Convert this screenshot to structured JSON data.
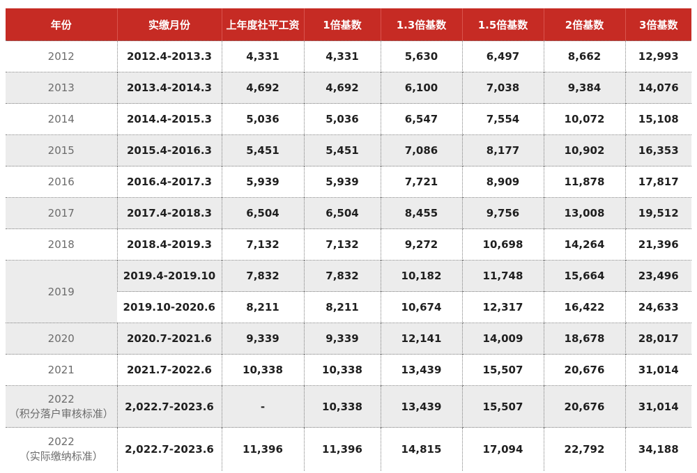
{
  "headers": [
    "年份",
    "实缴月份",
    "上年度社平工资",
    "1倍基数",
    "1.3倍基数",
    "1.5倍基数",
    "2倍基数",
    "3倍基数"
  ],
  "rows": [
    {
      "year": "2012",
      "period": "2012.4-2013.3",
      "avg": "4,331",
      "x1": "4,331",
      "x13": "5,630",
      "x15": "6,497",
      "x2": "8,662",
      "x3": "12,993"
    },
    {
      "year": "2013",
      "period": "2013.4-2014.3",
      "avg": "4,692",
      "x1": "4,692",
      "x13": "6,100",
      "x15": "7,038",
      "x2": "9,384",
      "x3": "14,076"
    },
    {
      "year": "2014",
      "period": "2014.4-2015.3",
      "avg": "5,036",
      "x1": "5,036",
      "x13": "6,547",
      "x15": "7,554",
      "x2": "10,072",
      "x3": "15,108"
    },
    {
      "year": "2015",
      "period": "2015.4-2016.3",
      "avg": "5,451",
      "x1": "5,451",
      "x13": "7,086",
      "x15": "8,177",
      "x2": "10,902",
      "x3": "16,353"
    },
    {
      "year": "2016",
      "period": "2016.4-2017.3",
      "avg": "5,939",
      "x1": "5,939",
      "x13": "7,721",
      "x15": "8,909",
      "x2": "11,878",
      "x3": "17,817"
    },
    {
      "year": "2017",
      "period": "2017.4-2018.3",
      "avg": "6,504",
      "x1": "6,504",
      "x13": "8,455",
      "x15": "9,756",
      "x2": "13,008",
      "x3": "19,512"
    },
    {
      "year": "2018",
      "period": "2018.4-2019.3",
      "avg": "7,132",
      "x1": "7,132",
      "x13": "9,272",
      "x15": "10,698",
      "x2": "14,264",
      "x3": "21,396"
    },
    {
      "year": "2019",
      "period": "2019.4-2019.10",
      "avg": "7,832",
      "x1": "7,832",
      "x13": "10,182",
      "x15": "11,748",
      "x2": "15,664",
      "x3": "23,496"
    },
    {
      "year": "",
      "period": "2019.10-2020.6",
      "avg": "8,211",
      "x1": "8,211",
      "x13": "10,674",
      "x15": "12,317",
      "x2": "16,422",
      "x3": "24,633"
    },
    {
      "year": "2020",
      "period": "2020.7-2021.6",
      "avg": "9,339",
      "x1": "9,339",
      "x13": "12,141",
      "x15": "14,009",
      "x2": "18,678",
      "x3": "28,017"
    },
    {
      "year": "2021",
      "period": "2021.7-2022.6",
      "avg": "10,338",
      "x1": "10,338",
      "x13": "13,439",
      "x15": "15,507",
      "x2": "20,676",
      "x3": "31,014"
    },
    {
      "year": "2022",
      "year_note": "（积分落户审核标准）",
      "period": "2,022.7-2023.6",
      "avg": "-",
      "x1": "10,338",
      "x13": "13,439",
      "x15": "15,507",
      "x2": "20,676",
      "x3": "31,014"
    },
    {
      "year": "2022",
      "year_note": "（实际缴纳标准）",
      "period": "2,022.7-2023.6",
      "avg": "11,396",
      "x1": "11,396",
      "x13": "14,815",
      "x15": "17,094",
      "x2": "22,792",
      "x3": "34,188"
    }
  ],
  "colors": {
    "header_bg": "#c62b24",
    "shade_bg": "#ececec"
  }
}
